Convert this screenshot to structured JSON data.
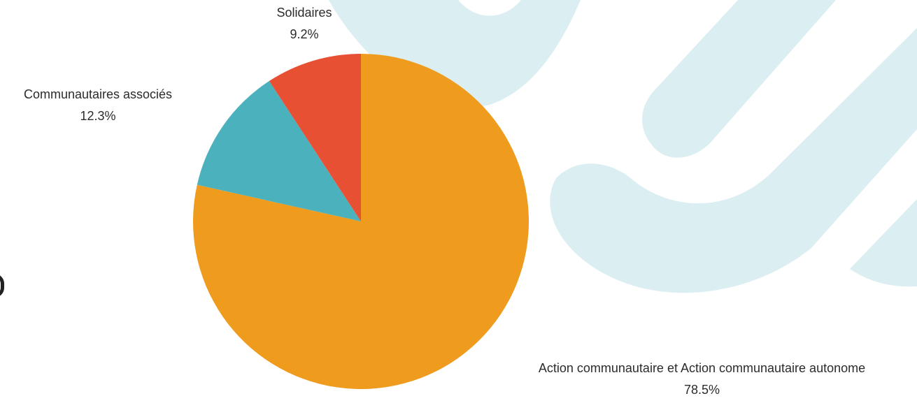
{
  "chart_data": {
    "type": "pie",
    "slices": [
      {
        "label": "Action communautaire et Action communautaire autonome",
        "value": 78.5,
        "display": "78.5%",
        "color": "#ee9b1e"
      },
      {
        "label": "Communautaires associés",
        "value": 12.3,
        "display": "12.3%",
        "color": "#4bb2bd"
      },
      {
        "label": "Solidaires",
        "value": 9.2,
        "display": "9.2%",
        "color": "#e85034"
      }
    ],
    "legend": "none",
    "start_angle": "top",
    "direction": "clockwise"
  },
  "colors": {
    "background_decoration": "#dbeef2"
  }
}
